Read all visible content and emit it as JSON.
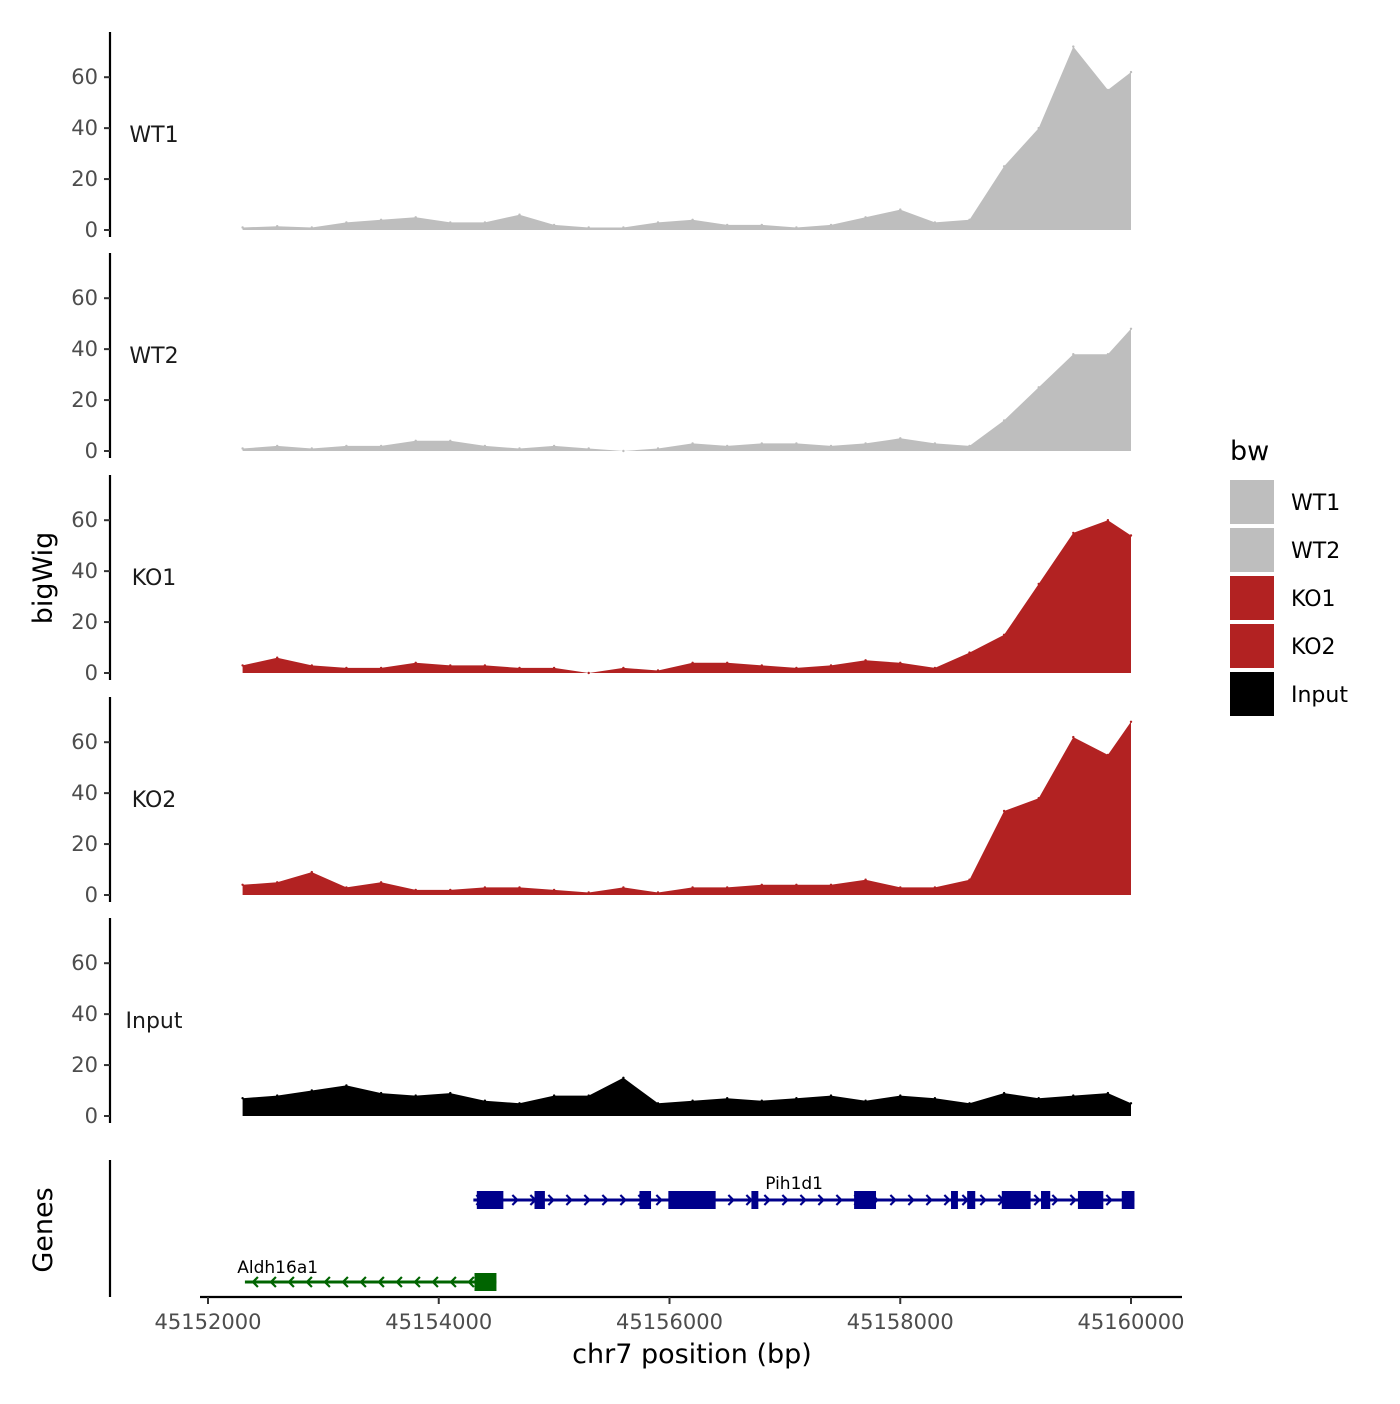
{
  "chart_data": {
    "type": "area",
    "x": [
      45152300,
      45152600,
      45152900,
      45153200,
      45153500,
      45153800,
      45154100,
      45154400,
      45154700,
      45155000,
      45155300,
      45155600,
      45155900,
      45156200,
      45156500,
      45156800,
      45157100,
      45157400,
      45157700,
      45158000,
      45158300,
      45158600,
      45158900,
      45159200,
      45159500,
      45159800,
      45160000
    ],
    "xlim": [
      45152000,
      45160000
    ],
    "x_ticks": [
      "45152000",
      "45154000",
      "45156000",
      "45158000",
      "45160000"
    ],
    "x_tick_values": [
      45152000,
      45154000,
      45156000,
      45158000,
      45160000
    ],
    "ylim": [
      0,
      75
    ],
    "y_ticks": [
      "0",
      "20",
      "40",
      "60"
    ],
    "y_tick_values": [
      0,
      20,
      40,
      60
    ],
    "xlabel": "chr7 position (bp)",
    "ylabel": "bigWig",
    "genes_label": "Genes",
    "legend_title": "bw",
    "legend_position": "right",
    "grid": false,
    "series": [
      {
        "name": "WT1",
        "color": "#bebebe",
        "values": [
          1,
          1.5,
          1,
          3,
          4,
          5,
          3,
          3,
          6,
          2,
          1,
          1,
          3,
          4,
          2,
          2,
          1,
          2,
          5,
          8,
          3,
          4,
          25,
          40,
          72,
          55,
          62
        ]
      },
      {
        "name": "WT2",
        "color": "#bebebe",
        "values": [
          1,
          2,
          1,
          2,
          2,
          4,
          4,
          2,
          1,
          2,
          1,
          0,
          1,
          3,
          2,
          3,
          3,
          2,
          3,
          5,
          3,
          2,
          12,
          25,
          38,
          38,
          48
        ]
      },
      {
        "name": "KO1",
        "color": "#b22222",
        "values": [
          3,
          6,
          3,
          2,
          2,
          4,
          3,
          3,
          2,
          2,
          0,
          2,
          1,
          4,
          4,
          3,
          2,
          3,
          5,
          4,
          2,
          8,
          15,
          35,
          55,
          60,
          54
        ]
      },
      {
        "name": "KO2",
        "color": "#b22222",
        "values": [
          4,
          5,
          9,
          3,
          5,
          2,
          2,
          3,
          3,
          2,
          1,
          3,
          1,
          3,
          3,
          4,
          4,
          4,
          6,
          3,
          3,
          6,
          33,
          38,
          62,
          55,
          68
        ]
      },
      {
        "name": "Input",
        "color": "#000000",
        "values": [
          7,
          8,
          10,
          12,
          9,
          8,
          9,
          6,
          5,
          8,
          8,
          15,
          5,
          6,
          7,
          6,
          7,
          8,
          6,
          8,
          7,
          5,
          9,
          7,
          8,
          9,
          5
        ]
      }
    ],
    "genes": [
      {
        "name": "Pih1d1",
        "color": "#00008b",
        "strand": "+",
        "start": 45154300,
        "end": 45160030,
        "exons": [
          [
            45154330,
            45154560
          ],
          [
            45154830,
            45154920
          ],
          [
            45155740,
            45155840
          ],
          [
            45155990,
            45156400
          ],
          [
            45156710,
            45156770
          ],
          [
            45157600,
            45157790
          ],
          [
            45158440,
            45158500
          ],
          [
            45158580,
            45158650
          ],
          [
            45158880,
            45159130
          ],
          [
            45159220,
            45159300
          ],
          [
            45159540,
            45159760
          ],
          [
            45159920,
            45160030
          ]
        ]
      },
      {
        "name": "Aldh16a1",
        "color": "#006400",
        "strand": "-",
        "start": 45152320,
        "end": 45154500,
        "exons": [
          [
            45154310,
            45154500
          ]
        ]
      }
    ]
  }
}
